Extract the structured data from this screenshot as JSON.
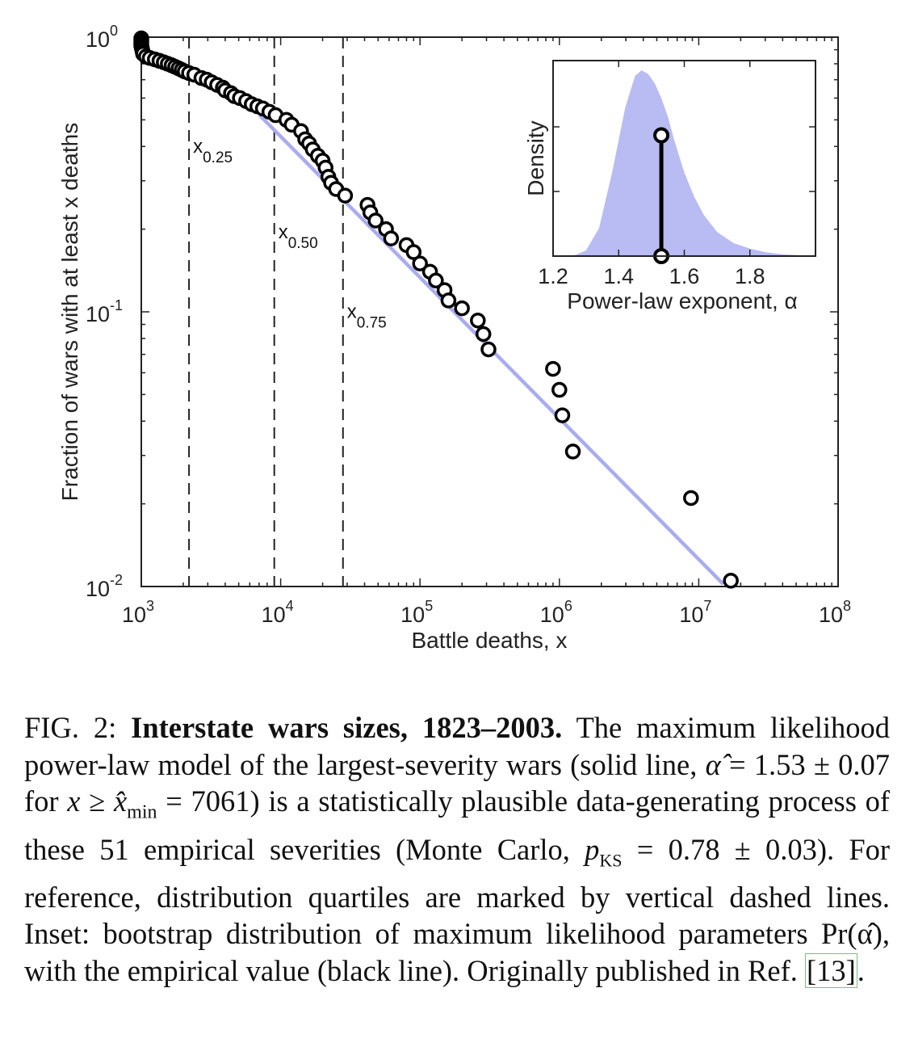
{
  "chart_data": [
    {
      "type": "scatter",
      "xlabel": "Battle deaths, x",
      "ylabel": "Fraction of wars with at least x deaths",
      "xscale": "log",
      "yscale": "log",
      "xlim": [
        1000,
        100000000
      ],
      "ylim": [
        0.01,
        1
      ],
      "x_ticks": [
        {
          "base": "10",
          "exp": "3",
          "value": 1000
        },
        {
          "base": "10",
          "exp": "4",
          "value": 10000
        },
        {
          "base": "10",
          "exp": "5",
          "value": 100000
        },
        {
          "base": "10",
          "exp": "6",
          "value": 1000000
        },
        {
          "base": "10",
          "exp": "7",
          "value": 10000000
        },
        {
          "base": "10",
          "exp": "8",
          "value": 100000000
        }
      ],
      "y_ticks": [
        {
          "base": "10",
          "exp": "0",
          "value": 1
        },
        {
          "base": "10",
          "exp": "-1",
          "value": 0.1
        },
        {
          "base": "10",
          "exp": "-2",
          "value": 0.01
        }
      ],
      "points": [
        [
          1000,
          0.99
        ],
        [
          1000,
          0.97
        ],
        [
          1000,
          0.95
        ],
        [
          1000,
          0.93
        ],
        [
          1010,
          0.91
        ],
        [
          1020,
          0.89
        ],
        [
          1030,
          0.87
        ],
        [
          1080,
          0.85
        ],
        [
          1150,
          0.84
        ],
        [
          1250,
          0.83
        ],
        [
          1350,
          0.82
        ],
        [
          1450,
          0.81
        ],
        [
          1550,
          0.8
        ],
        [
          1650,
          0.79
        ],
        [
          1750,
          0.78
        ],
        [
          1850,
          0.77
        ],
        [
          1950,
          0.76
        ],
        [
          2050,
          0.75
        ],
        [
          2200,
          0.74
        ],
        [
          2400,
          0.73
        ],
        [
          2700,
          0.71
        ],
        [
          2950,
          0.7
        ],
        [
          3200,
          0.685
        ],
        [
          3500,
          0.67
        ],
        [
          3850,
          0.655
        ],
        [
          4000,
          0.64
        ],
        [
          4400,
          0.625
        ],
        [
          4650,
          0.61
        ],
        [
          5100,
          0.6
        ],
        [
          5650,
          0.585
        ],
        [
          6200,
          0.57
        ],
        [
          6800,
          0.56
        ],
        [
          7450,
          0.55
        ],
        [
          8300,
          0.535
        ],
        [
          9200,
          0.52
        ],
        [
          11000,
          0.5
        ],
        [
          12000,
          0.48
        ],
        [
          14000,
          0.455
        ],
        [
          15000,
          0.425
        ],
        [
          16000,
          0.41
        ],
        [
          17000,
          0.39
        ],
        [
          18500,
          0.37
        ],
        [
          20000,
          0.355
        ],
        [
          21000,
          0.335
        ],
        [
          22000,
          0.31
        ],
        [
          23000,
          0.295
        ],
        [
          25000,
          0.28
        ],
        [
          29000,
          0.265
        ],
        [
          42000,
          0.245
        ],
        [
          44000,
          0.23
        ],
        [
          48000,
          0.215
        ],
        [
          57000,
          0.2
        ],
        [
          62000,
          0.185
        ],
        [
          80000,
          0.175
        ],
        [
          90000,
          0.165
        ],
        [
          100000,
          0.15
        ],
        [
          118000,
          0.14
        ],
        [
          130000,
          0.13
        ],
        [
          150000,
          0.12
        ],
        [
          160000,
          0.11
        ],
        [
          200000,
          0.103
        ],
        [
          260000,
          0.093
        ],
        [
          285000,
          0.083
        ],
        [
          310000,
          0.073
        ],
        [
          900000,
          0.062
        ],
        [
          1000000,
          0.052
        ],
        [
          1050000,
          0.042
        ],
        [
          1250000,
          0.031
        ],
        [
          8800000,
          0.021
        ],
        [
          17000000,
          0.0105
        ]
      ],
      "fit_line": {
        "x": [
          7061,
          15000000
        ],
        "y": [
          0.52,
          0.0102
        ],
        "color": "#a9acee"
      },
      "quartiles": [
        {
          "value": 2200,
          "label": "x",
          "sub": "0.25",
          "label_y": 0.38
        },
        {
          "value": 9000,
          "label": "x",
          "sub": "0.50",
          "label_y": 0.185
        },
        {
          "value": 28000,
          "label": "x",
          "sub": "0.75",
          "label_y": 0.095
        }
      ]
    },
    {
      "type": "area",
      "xlabel": "Power-law exponent, α",
      "ylabel": "Density",
      "xlim": [
        1.2,
        2.0
      ],
      "x_ticks": [
        "1.2",
        "1.4",
        "1.6",
        "1.8"
      ],
      "x": [
        1.26,
        1.3,
        1.34,
        1.38,
        1.42,
        1.45,
        1.47,
        1.49,
        1.51,
        1.53,
        1.55,
        1.57,
        1.6,
        1.63,
        1.66,
        1.7,
        1.75,
        1.8,
        1.85,
        1.9,
        2.0
      ],
      "y": [
        0.0,
        0.03,
        0.15,
        0.45,
        0.8,
        0.97,
        1.0,
        0.98,
        0.93,
        0.85,
        0.75,
        0.62,
        0.45,
        0.32,
        0.22,
        0.13,
        0.07,
        0.04,
        0.02,
        0.01,
        0.0
      ],
      "fill": "#b8bcf3",
      "empirical_alpha": 1.53
    }
  ],
  "caption": {
    "label": "FIG. 2:",
    "title": "Interstate wars sizes, 1823–2003.",
    "body_1": "The maximum likelihood power-law model of the largest-severity wars (solid line,",
    "alpha_hat": "α̂",
    "eq_1": "= 1.53 ± 0.07 for",
    "x": "x",
    "geq": "≥",
    "xmin_hat": "x̂",
    "min_sub": "min",
    "eq_2": "= 7061) is a statistically plausible data-generating process of these 51 empirical severities (Monte Carlo,",
    "p": "p",
    "ks_sub": "KS",
    "eq_3": "= 0.78 ± 0.03). For reference, distribution quartiles are marked by vertical dashed lines. Inset: bootstrap distribution of maximum likelihood parameters Pr(α̂), with the empirical value (black line). Originally published in Ref.",
    "ref": "[13]",
    "end": "."
  }
}
